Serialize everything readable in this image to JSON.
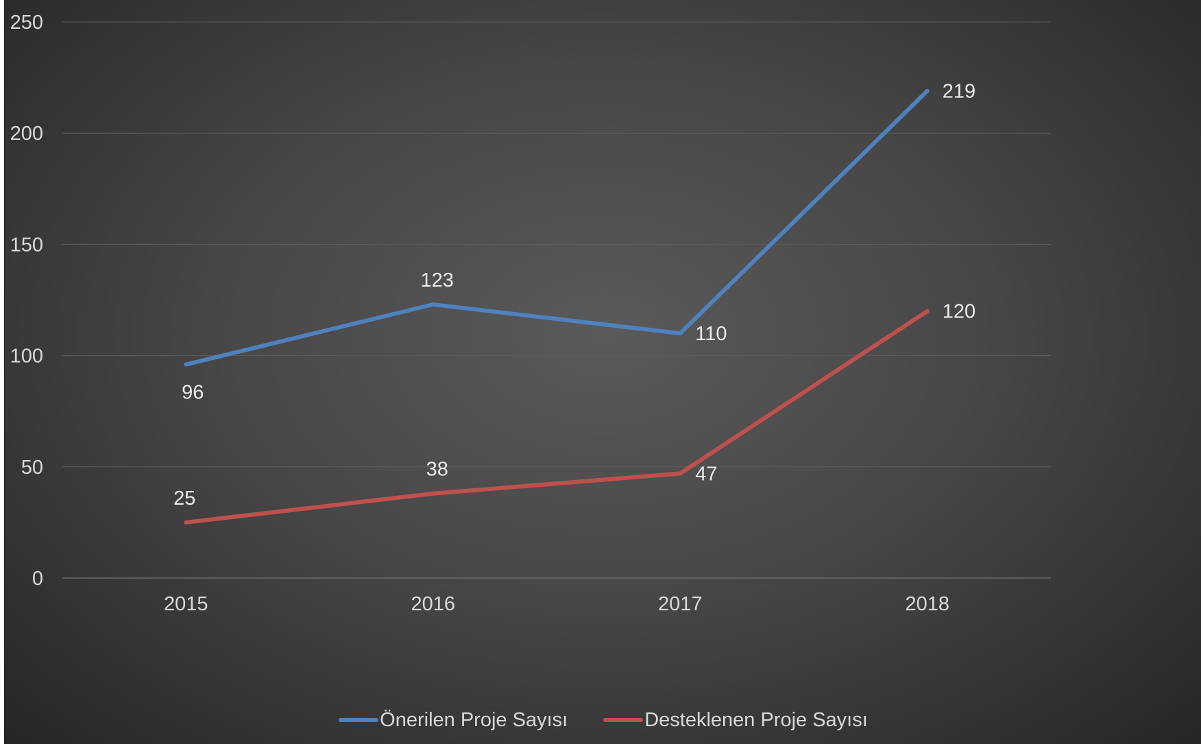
{
  "chart_data": {
    "type": "line",
    "title": "",
    "xlabel": "",
    "ylabel": "",
    "categories": [
      "2015",
      "2016",
      "2017",
      "2018"
    ],
    "ylim": [
      0,
      250
    ],
    "yticks": [
      0,
      50,
      100,
      150,
      200,
      250
    ],
    "grid": true,
    "legend_position": "bottom",
    "series": [
      {
        "name": "Önerilen Proje Sayısı",
        "values": [
          96,
          123,
          110,
          219
        ],
        "color": "#4f81bd"
      },
      {
        "name": "Desteklenen Proje Sayısı",
        "values": [
          25,
          38,
          47,
          120
        ],
        "color": "#c0504d"
      }
    ]
  }
}
